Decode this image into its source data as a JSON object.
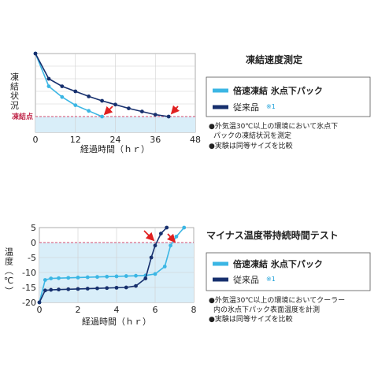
{
  "colors": {
    "fast": "#3bb6e4",
    "conventional": "#17306e",
    "plot_fill": "#d9eef9",
    "ref_line": "#d64b6e",
    "arrow": "#e02020",
    "grid": "#cfcfcf"
  },
  "chart_data": [
    {
      "type": "line",
      "title": "凍結速度測定",
      "xlabel": "経過時間（ｈｒ）",
      "ylabel": "凍結状況",
      "xlim": [
        0,
        48
      ],
      "x_ticks": [
        "0",
        "12",
        "24",
        "36",
        "48"
      ],
      "reference_label": "凍結点",
      "reference_value": 0,
      "ylim": [
        -1,
        10
      ],
      "series": [
        {
          "name": "倍速凍結 氷点下パック",
          "x": [
            0,
            4,
            8,
            12,
            16,
            20
          ],
          "y": [
            10,
            4.8,
            3.1,
            1.8,
            0.9,
            0
          ]
        },
        {
          "name": "従来品",
          "name_mark": "※1",
          "x": [
            0,
            4,
            8,
            12,
            16,
            20,
            24,
            28,
            32,
            36,
            40
          ],
          "y": [
            10,
            6.0,
            4.8,
            4.0,
            3.2,
            2.5,
            1.9,
            1.3,
            0.8,
            0.3,
            0
          ]
        }
      ],
      "notes": [
        "●外気温30℃以上の環境において氷点下パックの凍結状況を測定",
        "●実験は同等サイズを比較"
      ]
    },
    {
      "type": "line",
      "title": "マイナス温度帯持続時間テスト",
      "xlabel": "経過時間（ｈｒ）",
      "ylabel": "温度（℃）",
      "xlim": [
        0,
        8
      ],
      "ylim": [
        -20,
        5
      ],
      "x_ticks": [
        "0",
        "2",
        "4",
        "6",
        "8"
      ],
      "y_ticks": [
        "5",
        "0",
        "-5",
        "-10",
        "-15",
        "-20"
      ],
      "series": [
        {
          "name": "倍速凍結 氷点下パック",
          "x": [
            0,
            0.3,
            0.6,
            1.0,
            1.5,
            2.0,
            2.5,
            3.0,
            3.5,
            4.0,
            4.5,
            5.0,
            5.5,
            6.0,
            6.5,
            6.8,
            7.1,
            7.5
          ],
          "y": [
            -20,
            -12.5,
            -12,
            -11.9,
            -11.8,
            -11.7,
            -11.6,
            -11.5,
            -11.4,
            -11.3,
            -11.2,
            -11.1,
            -11.0,
            -10.5,
            -8,
            -1,
            2,
            5
          ]
        },
        {
          "name": "従来品",
          "name_mark": "※1",
          "x": [
            0,
            0.3,
            0.6,
            1.0,
            1.5,
            2.0,
            2.5,
            3.0,
            3.5,
            4.0,
            4.5,
            5.0,
            5.5,
            5.8,
            6.0,
            6.3,
            6.6
          ],
          "y": [
            -20,
            -16,
            -15.8,
            -15.7,
            -15.6,
            -15.5,
            -15.4,
            -15.3,
            -15.2,
            -15.1,
            -15.0,
            -14.5,
            -12,
            -5,
            -1,
            3,
            5
          ]
        }
      ],
      "notes": [
        "●外気温30℃以上の環境においてクーラー内の氷点下パック表面温度を計測",
        "●実験は同等サイズを比較"
      ]
    }
  ]
}
